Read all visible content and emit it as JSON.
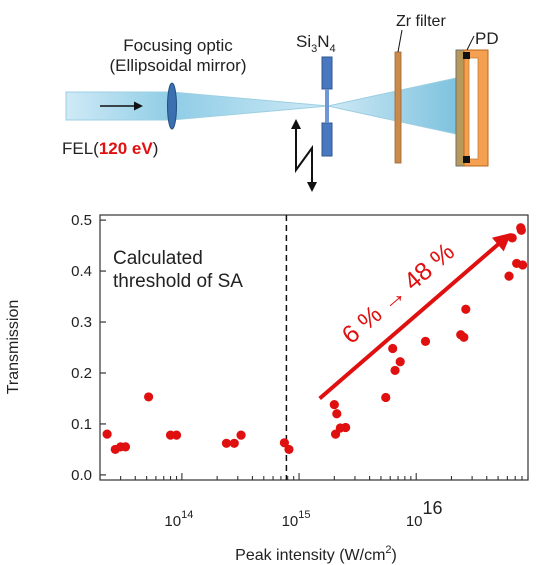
{
  "schematic": {
    "focusing_optic_line1": "Focusing optic",
    "focusing_optic_line2": "(Ellipsoidal mirror)",
    "fel_prefix": "FEL(",
    "fel_energy": "120 eV",
    "fel_suffix": ")",
    "sample_main": "Si",
    "sample_sub1": "3",
    "sample_mid": "N",
    "sample_sub2": "4",
    "filter_label": "Zr filter",
    "detector_label": "PD",
    "colors": {
      "beam": "#bfe4f3",
      "mirror": "#3a6fb0",
      "sample": "#4a78c0",
      "filter": "#c98a4a",
      "detector": "#f4a050",
      "highlight": "#e01010"
    }
  },
  "chart_data": {
    "type": "scatter",
    "title": "",
    "xlabel": "Peak intensity (W/cm",
    "xlabel_sup": "2",
    "xlabel_close": ")",
    "ylabel": "Transmission",
    "x_scale": "log",
    "xlim": [
      20000000000000.0,
      9e+16
    ],
    "ylim": [
      -0.01,
      0.51
    ],
    "yticks": [
      "0.0",
      "0.1",
      "0.2",
      "0.3",
      "0.4",
      "0.5"
    ],
    "xticks": [
      {
        "base": "10",
        "exp": "14",
        "value": 100000000000000.0
      },
      {
        "base": "10",
        "exp": "15",
        "value": 1000000000000000.0
      },
      {
        "base": "10",
        "exp": "16",
        "value": 1e+16
      }
    ],
    "grid": false,
    "marker_color": "#e01010",
    "annotation_threshold_line1": "Calculated",
    "annotation_threshold_line2": "threshold of SA",
    "threshold_x": 780000000000000.0,
    "trend_label": "6 % → 48 %",
    "trend_arrow": {
      "from": [
        1500000000000000.0,
        0.15
      ],
      "to": [
        6.5e+16,
        0.475
      ]
    },
    "series": [
      {
        "x": [
          23000000000000.0,
          27000000000000.0,
          30000000000000.0,
          33000000000000.0,
          52000000000000.0,
          80000000000000.0,
          90000000000000.0,
          240000000000000.0,
          280000000000000.0,
          320000000000000.0,
          750000000000000.0,
          820000000000000.0,
          2000000000000000.0,
          2100000000000000.0,
          2250000000000000.0,
          2500000000000000.0,
          2050000000000000.0,
          5500000000000000.0,
          6300000000000000.0,
          6600000000000000.0,
          7300000000000000.0,
          1.2e+16,
          2.4e+16,
          2.55e+16,
          2.65e+16,
          6.2e+16,
          6.6e+16,
          7.2e+16,
          7.8e+16,
          7.9e+16,
          8.1e+16
        ],
        "y": [
          0.08,
          0.05,
          0.055,
          0.055,
          0.153,
          0.078,
          0.078,
          0.062,
          0.062,
          0.078,
          0.063,
          0.05,
          0.138,
          0.12,
          0.092,
          0.093,
          0.08,
          0.152,
          0.248,
          0.205,
          0.222,
          0.262,
          0.275,
          0.27,
          0.325,
          0.39,
          0.465,
          0.415,
          0.485,
          0.48,
          0.412
        ]
      }
    ]
  }
}
